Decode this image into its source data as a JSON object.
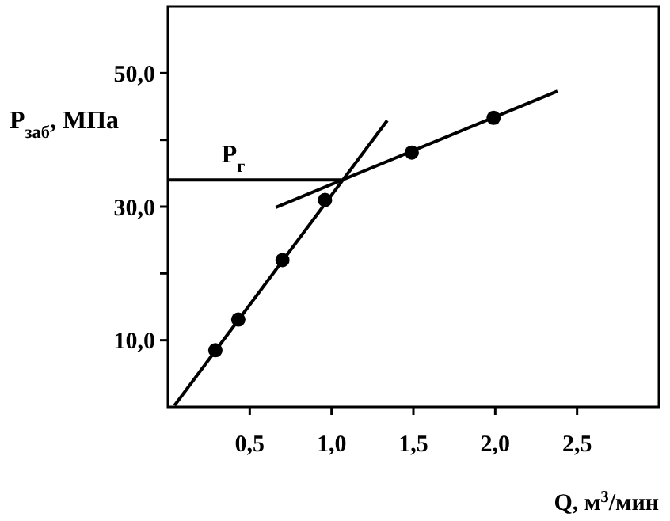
{
  "chart_data": {
    "type": "scatter",
    "xlabel": "Q, м$^{3}$/мин",
    "ylabel": "P$_{заб}$, МПа",
    "xlim": [
      0,
      3.0
    ],
    "ylim": [
      0,
      60
    ],
    "xticks": [
      {
        "value": 0.5,
        "label": "0,5"
      },
      {
        "value": 1.0,
        "label": "1,0"
      },
      {
        "value": 1.5,
        "label": "1,5"
      },
      {
        "value": 2.0,
        "label": "2,0"
      },
      {
        "value": 2.5,
        "label": "2,5"
      }
    ],
    "yticks": [
      {
        "value": 10,
        "label": "10,0"
      },
      {
        "value": 20,
        "label": null
      },
      {
        "value": 30,
        "label": "30,0"
      },
      {
        "value": 40,
        "label": null
      },
      {
        "value": 50,
        "label": "50,0"
      }
    ],
    "marker": "circle",
    "grid": false,
    "series": [
      {
        "color": "#000000",
        "x": [
          0.29,
          0.43,
          0.7,
          0.96,
          1.49,
          1.99
        ],
        "values": [
          8.5,
          13.1,
          22.0,
          31.0,
          38.1,
          43.3
        ]
      },
      {
        "type": "line",
        "marker": "none",
        "color": "#000000",
        "x": [
          0.04,
          1.34
        ],
        "values": [
          0.2,
          42.9
        ]
      },
      {
        "type": "line",
        "marker": "none",
        "color": "#000000",
        "x": [
          0.66,
          2.38
        ],
        "values": [
          29.9,
          47.3
        ]
      },
      {
        "type": "line",
        "marker": "none",
        "color": "#000000",
        "x": [
          0,
          1.06
        ],
        "values": [
          34.0,
          34.0
        ]
      }
    ],
    "annotations": [
      {
        "text": "P$_{г}$",
        "x": 0.4,
        "y": 34.0
      }
    ]
  }
}
